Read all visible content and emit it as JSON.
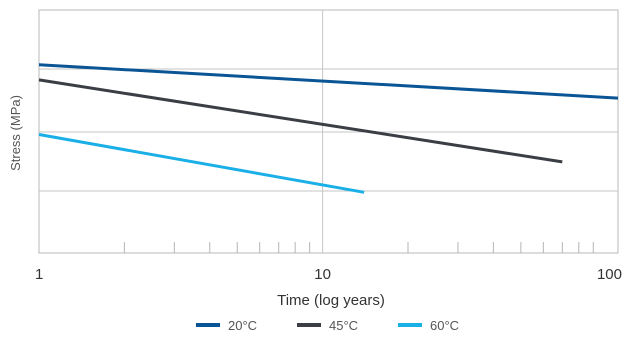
{
  "chart_data": {
    "type": "line",
    "title": "",
    "xlabel": "Time (log years)",
    "ylabel": "Stress (MPa)",
    "x_scale": "log",
    "xlim": [
      1,
      110
    ],
    "ylim": [
      0,
      8
    ],
    "x_ticks": [
      1,
      10,
      100
    ],
    "x_tick_labels": [
      "1",
      "10",
      "100"
    ],
    "y_tick_labels": [],
    "grid": true,
    "legend_position": "bottom",
    "series": [
      {
        "name": "20°C",
        "color": "#0a5595",
        "x": [
          1,
          110
        ],
        "y": [
          6.2,
          5.1
        ]
      },
      {
        "name": "45°C",
        "color": "#3b3e44",
        "x": [
          1,
          70
        ],
        "y": [
          5.7,
          3.0
        ]
      },
      {
        "name": "60°C",
        "color": "#1aafe6",
        "x": [
          1,
          14
        ],
        "y": [
          3.9,
          2.0
        ]
      }
    ]
  }
}
